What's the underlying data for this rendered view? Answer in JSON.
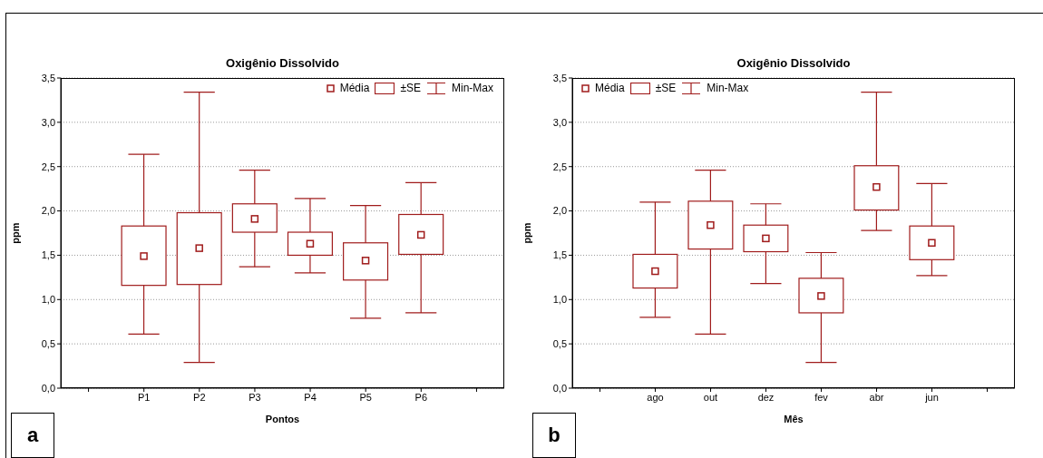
{
  "chart_data": [
    {
      "type": "box",
      "title": "Oxigênio Dissolvido",
      "xlabel": "Pontos",
      "ylabel": "ppm",
      "categories": [
        "P1",
        "P2",
        "P3",
        "P4",
        "P5",
        "P6"
      ],
      "color": "#a01c1c",
      "boxes": [
        {
          "low": 0.61,
          "q1": 1.16,
          "q3": 1.83,
          "high": 2.64,
          "mean": 1.49
        },
        {
          "low": 0.29,
          "q1": 1.17,
          "q3": 1.98,
          "high": 3.34,
          "mean": 1.58
        },
        {
          "low": 1.37,
          "q1": 1.76,
          "q3": 2.08,
          "high": 2.46,
          "mean": 1.91
        },
        {
          "low": 1.3,
          "q1": 1.5,
          "q3": 1.76,
          "high": 2.14,
          "mean": 1.63
        },
        {
          "low": 0.79,
          "q1": 1.22,
          "q3": 1.64,
          "high": 2.06,
          "mean": 1.44
        },
        {
          "low": 0.85,
          "q1": 1.51,
          "q3": 1.96,
          "high": 2.32,
          "mean": 1.73
        }
      ],
      "ylim": [
        0,
        3.5
      ],
      "yticks": [
        {
          "value": 0,
          "label": "0,0"
        },
        {
          "value": 0.5,
          "label": "0,5"
        },
        {
          "value": 1,
          "label": "1,0"
        },
        {
          "value": 1.5,
          "label": "1,5"
        },
        {
          "value": 2,
          "label": "2,0"
        },
        {
          "value": 2.5,
          "label": "2,5"
        },
        {
          "value": 3,
          "label": "3,0"
        },
        {
          "value": 3.5,
          "label": "3,5"
        }
      ],
      "grid": "y",
      "marker": "square",
      "annotations": [
        "Média",
        "±SE",
        "Min-Max",
        "a"
      ]
    },
    {
      "type": "box",
      "title": "Oxigênio Dissolvido",
      "xlabel": "Mês",
      "ylabel": "ppm",
      "categories": [
        "ago",
        "out",
        "dez",
        "fev",
        "abr",
        "jun"
      ],
      "color": "#a01c1c",
      "boxes": [
        {
          "low": 0.8,
          "q1": 1.13,
          "q3": 1.51,
          "high": 2.1,
          "mean": 1.32
        },
        {
          "low": 0.61,
          "q1": 1.57,
          "q3": 2.11,
          "high": 2.46,
          "mean": 1.84
        },
        {
          "low": 1.18,
          "q1": 1.54,
          "q3": 1.84,
          "high": 2.08,
          "mean": 1.69
        },
        {
          "low": 0.29,
          "q1": 0.85,
          "q3": 1.24,
          "high": 1.53,
          "mean": 1.04
        },
        {
          "low": 1.78,
          "q1": 2.01,
          "q3": 2.51,
          "high": 3.34,
          "mean": 2.27
        },
        {
          "low": 1.27,
          "q1": 1.45,
          "q3": 1.83,
          "high": 2.31,
          "mean": 1.64
        }
      ],
      "ylim": [
        0,
        3.5
      ],
      "yticks": [
        {
          "value": 0,
          "label": "0,0"
        },
        {
          "value": 0.5,
          "label": "0,5"
        },
        {
          "value": 1,
          "label": "1,0"
        },
        {
          "value": 1.5,
          "label": "1,5"
        },
        {
          "value": 2,
          "label": "2,0"
        },
        {
          "value": 2.5,
          "label": "2,5"
        },
        {
          "value": 3,
          "label": "3,0"
        },
        {
          "value": 3.5,
          "label": "3,5"
        }
      ],
      "grid": "y",
      "marker": "square",
      "annotations": [
        "Média",
        "±SE",
        "Min-Max",
        "b"
      ]
    }
  ]
}
